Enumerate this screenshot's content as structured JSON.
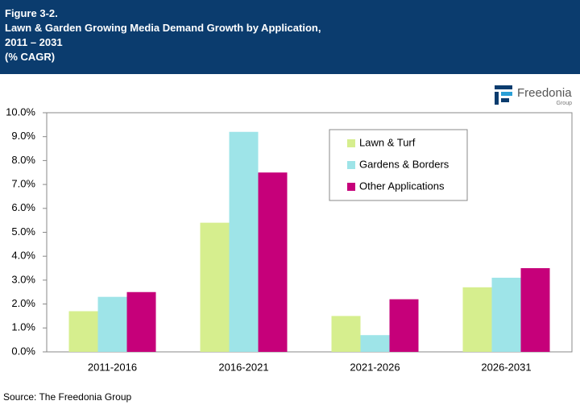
{
  "header": {
    "title_lines": [
      "Figure 3-2.",
      "Lawn & Garden Growing Media Demand Growth by Application,",
      "2011 – 2031",
      "(% CAGR)"
    ]
  },
  "logo": {
    "name": "Freedonia",
    "sub": "Group"
  },
  "chart_data": {
    "type": "bar",
    "categories": [
      "2011-2016",
      "2016-2021",
      "2021-2026",
      "2026-2031"
    ],
    "series": [
      {
        "name": "Lawn & Turf",
        "color": "#d6ee8e",
        "values": [
          1.7,
          5.4,
          1.5,
          2.7
        ]
      },
      {
        "name": "Gardens & Borders",
        "color": "#9ee4e8",
        "values": [
          2.3,
          9.2,
          0.7,
          3.1
        ]
      },
      {
        "name": "Other Applications",
        "color": "#c6007a",
        "values": [
          2.5,
          7.5,
          2.2,
          3.5
        ]
      }
    ],
    "ylim": [
      0,
      10
    ],
    "yticks": [
      {
        "value": 0,
        "label": "0.0%"
      },
      {
        "value": 1,
        "label": "1.0%"
      },
      {
        "value": 2,
        "label": "2.0%"
      },
      {
        "value": 3,
        "label": "3.0%"
      },
      {
        "value": 4,
        "label": "4.0%"
      },
      {
        "value": 5,
        "label": "5.0%"
      },
      {
        "value": 6,
        "label": "6.0%"
      },
      {
        "value": 7,
        "label": "7.0%"
      },
      {
        "value": 8,
        "label": "8.0%"
      },
      {
        "value": 9,
        "label": "9.0%"
      },
      {
        "value": 10,
        "label": "10.0%"
      }
    ],
    "grid": false,
    "legend": "upper-center"
  },
  "source": "Source: The Freedonia Group"
}
